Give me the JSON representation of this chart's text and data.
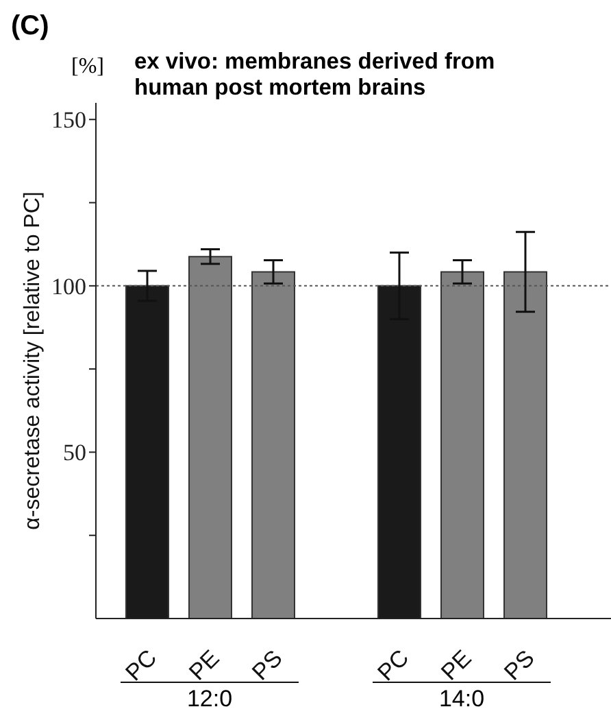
{
  "chart_data": {
    "type": "bar",
    "title": "ex vivo: membranes derived from human post mortem brains",
    "ylabel": "α-secretase activity [relative to PC]",
    "annotations": [
      "(C)",
      "[%]",
      "12:0",
      "14:0"
    ],
    "categories": [
      "PC",
      "PE",
      "PS",
      null,
      "PC",
      "PE",
      "PS"
    ],
    "values": [
      100,
      108.8,
      104.2,
      null,
      100,
      104.2,
      104.2
    ],
    "errors": [
      4.5,
      2.2,
      3.5,
      null,
      10,
      3.5,
      12
    ],
    "colors": [
      "#1a1a1a",
      "#808080",
      "#808080",
      "#ffffff",
      "#1a1a1a",
      "#808080",
      "#808080"
    ],
    "ylim": [
      0,
      155
    ],
    "yticks": [
      {
        "value": 25,
        "label": null
      },
      50,
      {
        "value": 75,
        "label": null
      },
      100,
      {
        "value": 125,
        "label": null
      },
      150
    ],
    "ref_lines": [
      {
        "axis": "y",
        "value": 100,
        "label": null,
        "color": "#555555",
        "line_style": "dotted"
      }
    ]
  }
}
